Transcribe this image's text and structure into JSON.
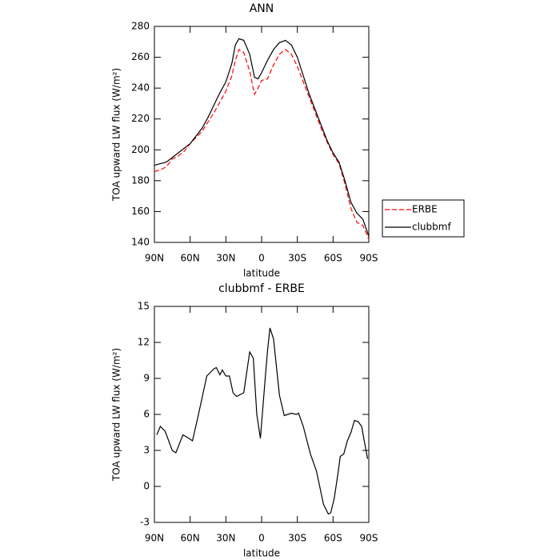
{
  "chart_data": [
    {
      "type": "line",
      "title": "ANN",
      "xlabel": "latitude",
      "ylabel": "TOA upward LW flux (W/m²)",
      "x": [
        90,
        85,
        80,
        75,
        70,
        65,
        60,
        55,
        50,
        45,
        40,
        35,
        30,
        25,
        22,
        19,
        15,
        10,
        6,
        3,
        0,
        -5,
        -10,
        -15,
        -20,
        -25,
        -30,
        -35,
        -40,
        -45,
        -50,
        -55,
        -60,
        -65,
        -70,
        -75,
        -80,
        -85,
        -90
      ],
      "series": [
        {
          "name": "ERBE",
          "color": "#ff0000",
          "linestyle": "dashed",
          "values": [
            186,
            187,
            189,
            194,
            196,
            199,
            204,
            208,
            212,
            218,
            224,
            231,
            238,
            248,
            258,
            265,
            263,
            251,
            236,
            240,
            245,
            246,
            255,
            262,
            265,
            262,
            254,
            244,
            234,
            224,
            214,
            205,
            197,
            191,
            178,
            162,
            153,
            151,
            142
          ]
        },
        {
          "name": "clubbmf",
          "color": "#000000",
          "linestyle": "solid",
          "values": [
            190,
            191,
            192,
            195,
            198,
            201,
            204,
            209,
            214,
            221,
            229,
            237,
            244,
            256,
            268,
            272,
            271,
            262,
            247,
            246,
            250,
            258,
            265,
            269.5,
            271,
            268,
            260,
            248,
            236,
            226,
            216,
            206,
            198,
            192,
            180,
            166,
            159,
            155,
            144
          ]
        }
      ],
      "xlim": [
        90,
        -90
      ],
      "xticks": [
        {
          "value": 90,
          "label": "90N"
        },
        {
          "value": 60,
          "label": "60N"
        },
        {
          "value": 30,
          "label": "30N"
        },
        0,
        {
          "value": -30,
          "label": "30S"
        },
        {
          "value": -60,
          "label": "60S"
        },
        {
          "value": -90,
          "label": "90S"
        }
      ],
      "ylim": [
        140,
        280
      ],
      "yticks": [
        140,
        160,
        180,
        200,
        220,
        240,
        260,
        280
      ],
      "legend": "right"
    },
    {
      "type": "line",
      "title": "clubbmf - ERBE",
      "xlabel": "latitude",
      "ylabel": "TOA upward LW flux (W/m²)",
      "x": [
        88,
        85,
        81,
        75,
        72,
        66,
        61,
        58,
        53,
        46,
        40,
        38,
        35,
        33,
        30,
        27,
        24,
        21,
        15,
        10,
        7,
        4,
        1,
        -3,
        -5,
        -7,
        -10,
        -15,
        -19,
        -22,
        -25,
        -29,
        -31,
        -35,
        -41,
        -46,
        -52,
        -56,
        -58,
        -61,
        -64,
        -66,
        -69,
        -72,
        -75,
        -78,
        -81,
        -84,
        -86,
        -89
      ],
      "series": [
        {
          "name": "clubbmf - ERBE",
          "color": "#000000",
          "linestyle": "solid",
          "values": [
            4.3,
            5,
            4.6,
            3,
            2.8,
            4.3,
            4,
            3.8,
            6,
            9.2,
            9.8,
            9.9,
            9.3,
            9.7,
            9.2,
            9.2,
            7.8,
            7.5,
            7.8,
            11.2,
            10.7,
            6,
            4,
            9,
            11.3,
            13.2,
            12.3,
            7.6,
            5.9,
            6,
            6.1,
            6,
            6.1,
            5,
            2.7,
            1.3,
            -1.5,
            -2.3,
            -2.2,
            -1,
            1,
            2.5,
            2.7,
            3.8,
            4.5,
            5.5,
            5.4,
            5,
            3.9,
            2.3
          ]
        }
      ],
      "xlim": [
        90,
        -90
      ],
      "xticks": [
        {
          "value": 90,
          "label": "90N"
        },
        {
          "value": 60,
          "label": "60N"
        },
        {
          "value": 30,
          "label": "30N"
        },
        0,
        {
          "value": -30,
          "label": "30S"
        },
        {
          "value": -60,
          "label": "60S"
        },
        {
          "value": -90,
          "label": "90S"
        }
      ],
      "ylim": [
        -3,
        15
      ],
      "yticks": [
        -3,
        0,
        3,
        6,
        9,
        12,
        15
      ]
    }
  ]
}
